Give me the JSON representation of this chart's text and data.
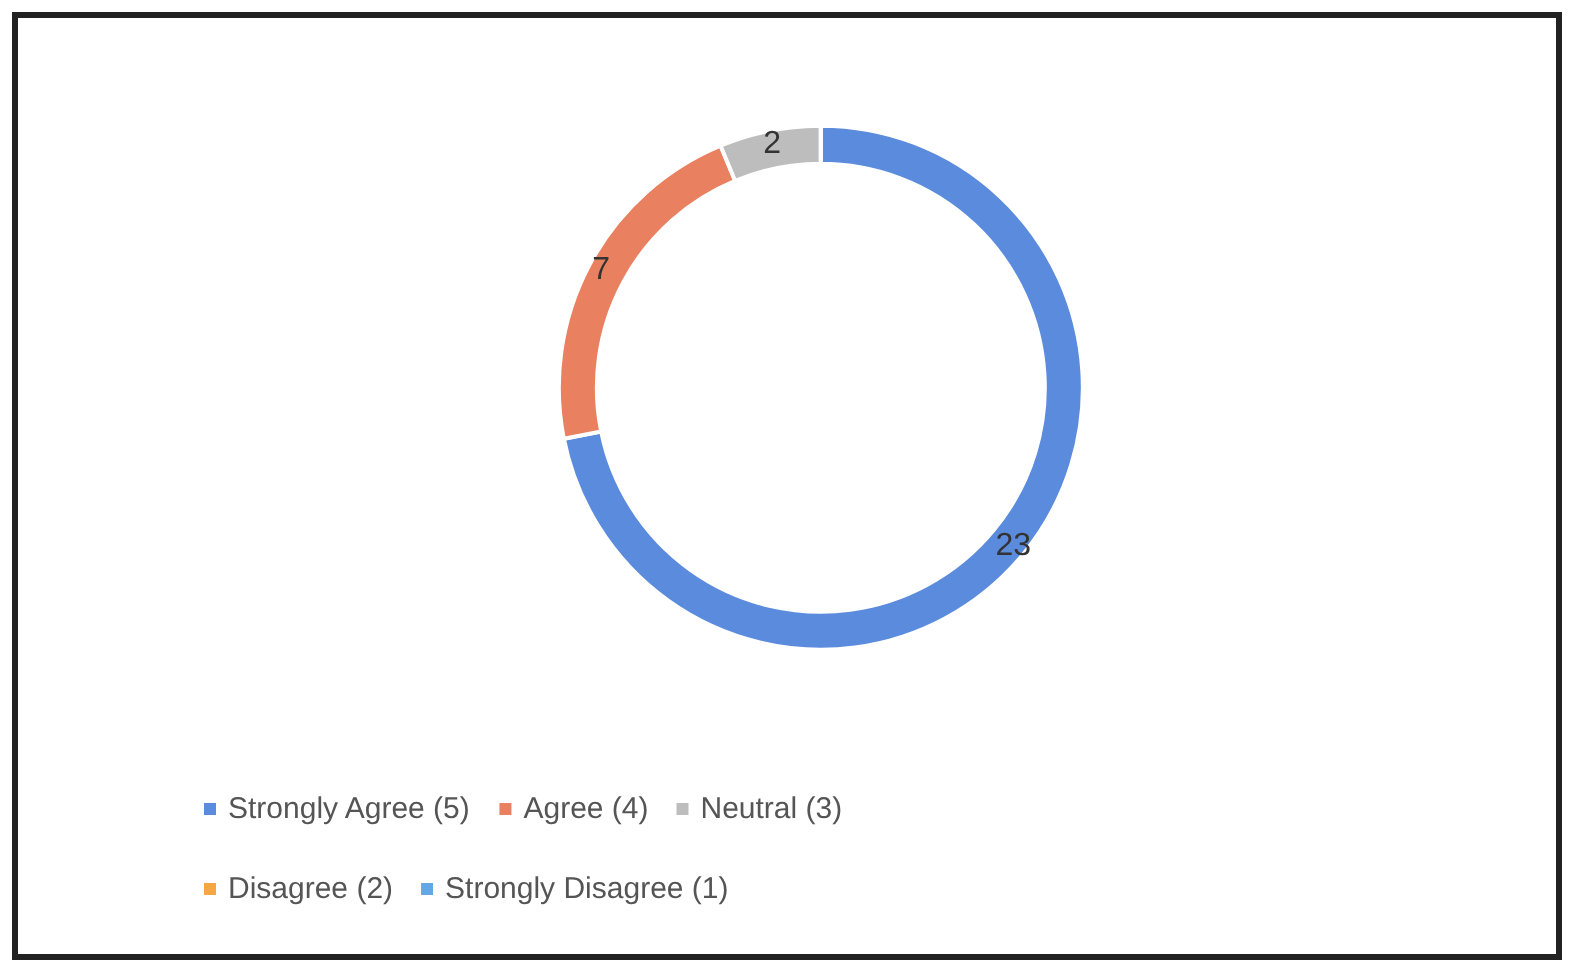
{
  "chart_data": {
    "type": "donut",
    "categories": [
      "Strongly Agree (5)",
      "Agree (4)",
      "Neutral (3)",
      "Disagree (2)",
      "Strongly Disagree (1)"
    ],
    "values": [
      23,
      7,
      2,
      0,
      0
    ],
    "colors": [
      "#5b8bdc",
      "#e9805f",
      "#bdbdbd",
      "#f4a742",
      "#62a8e6"
    ],
    "value_labels": [
      "23",
      "7",
      "2",
      null,
      null
    ],
    "legend": "bottom"
  }
}
